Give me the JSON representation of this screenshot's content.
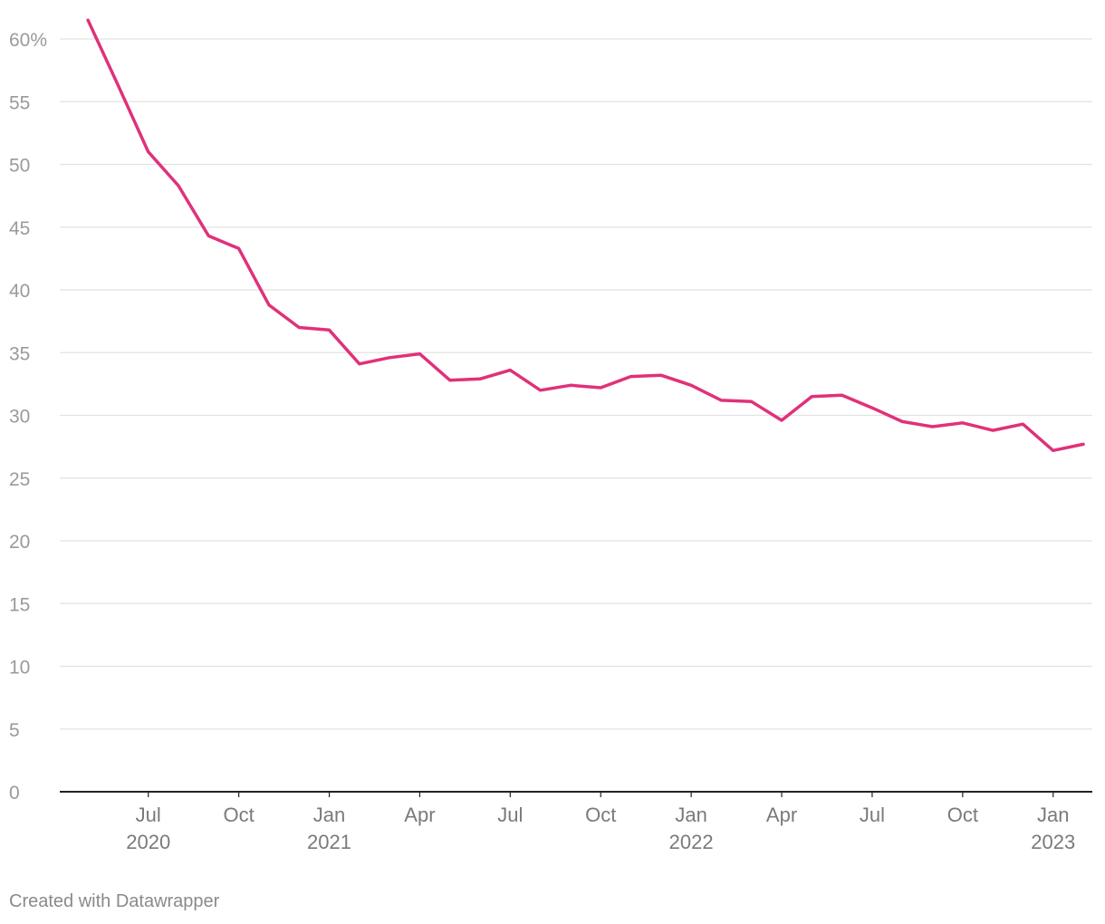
{
  "chart_data": {
    "type": "line",
    "title": "",
    "xlabel": "",
    "ylabel": "",
    "ylim": [
      0,
      60
    ],
    "y_ticks": [
      {
        "value": 0,
        "label": "0"
      },
      {
        "value": 5,
        "label": "5"
      },
      {
        "value": 10,
        "label": "10"
      },
      {
        "value": 15,
        "label": "15"
      },
      {
        "value": 20,
        "label": "20"
      },
      {
        "value": 25,
        "label": "25"
      },
      {
        "value": 30,
        "label": "30"
      },
      {
        "value": 35,
        "label": "35"
      },
      {
        "value": 40,
        "label": "40"
      },
      {
        "value": 45,
        "label": "45"
      },
      {
        "value": 50,
        "label": "50"
      },
      {
        "value": 55,
        "label": "55"
      },
      {
        "value": 60,
        "label": "60%"
      }
    ],
    "x_ticks": [
      {
        "date": "2020-07",
        "label": "Jul",
        "year": "2020"
      },
      {
        "date": "2020-10",
        "label": "Oct",
        "year": ""
      },
      {
        "date": "2021-01",
        "label": "Jan",
        "year": "2021"
      },
      {
        "date": "2021-04",
        "label": "Apr",
        "year": ""
      },
      {
        "date": "2021-07",
        "label": "Jul",
        "year": ""
      },
      {
        "date": "2021-10",
        "label": "Oct",
        "year": ""
      },
      {
        "date": "2022-01",
        "label": "Jan",
        "year": "2022"
      },
      {
        "date": "2022-04",
        "label": "Apr",
        "year": ""
      },
      {
        "date": "2022-07",
        "label": "Jul",
        "year": ""
      },
      {
        "date": "2022-10",
        "label": "Oct",
        "year": ""
      },
      {
        "date": "2023-01",
        "label": "Jan",
        "year": "2023"
      }
    ],
    "grid": true,
    "series": [
      {
        "color": "#e0317a",
        "x": [
          "2020-05",
          "2020-06",
          "2020-07",
          "2020-08",
          "2020-09",
          "2020-10",
          "2020-11",
          "2020-12",
          "2021-01",
          "2021-02",
          "2021-03",
          "2021-04",
          "2021-05",
          "2021-06",
          "2021-07",
          "2021-08",
          "2021-09",
          "2021-10",
          "2021-11",
          "2021-12",
          "2022-01",
          "2022-02",
          "2022-03",
          "2022-04",
          "2022-05",
          "2022-06",
          "2022-07",
          "2022-08",
          "2022-09",
          "2022-10",
          "2022-11",
          "2022-12",
          "2023-01",
          "2023-02"
        ],
        "values": [
          61.5,
          56.3,
          51.0,
          48.3,
          44.3,
          43.3,
          38.8,
          37.0,
          36.8,
          34.1,
          34.6,
          34.9,
          32.8,
          32.9,
          33.6,
          32.0,
          32.4,
          32.2,
          33.1,
          33.2,
          32.4,
          31.2,
          31.1,
          29.6,
          31.5,
          31.6,
          30.6,
          29.5,
          29.1,
          29.4,
          28.8,
          29.3,
          27.2,
          27.7
        ]
      }
    ]
  },
  "footer": {
    "credit": "Created with Datawrapper"
  }
}
